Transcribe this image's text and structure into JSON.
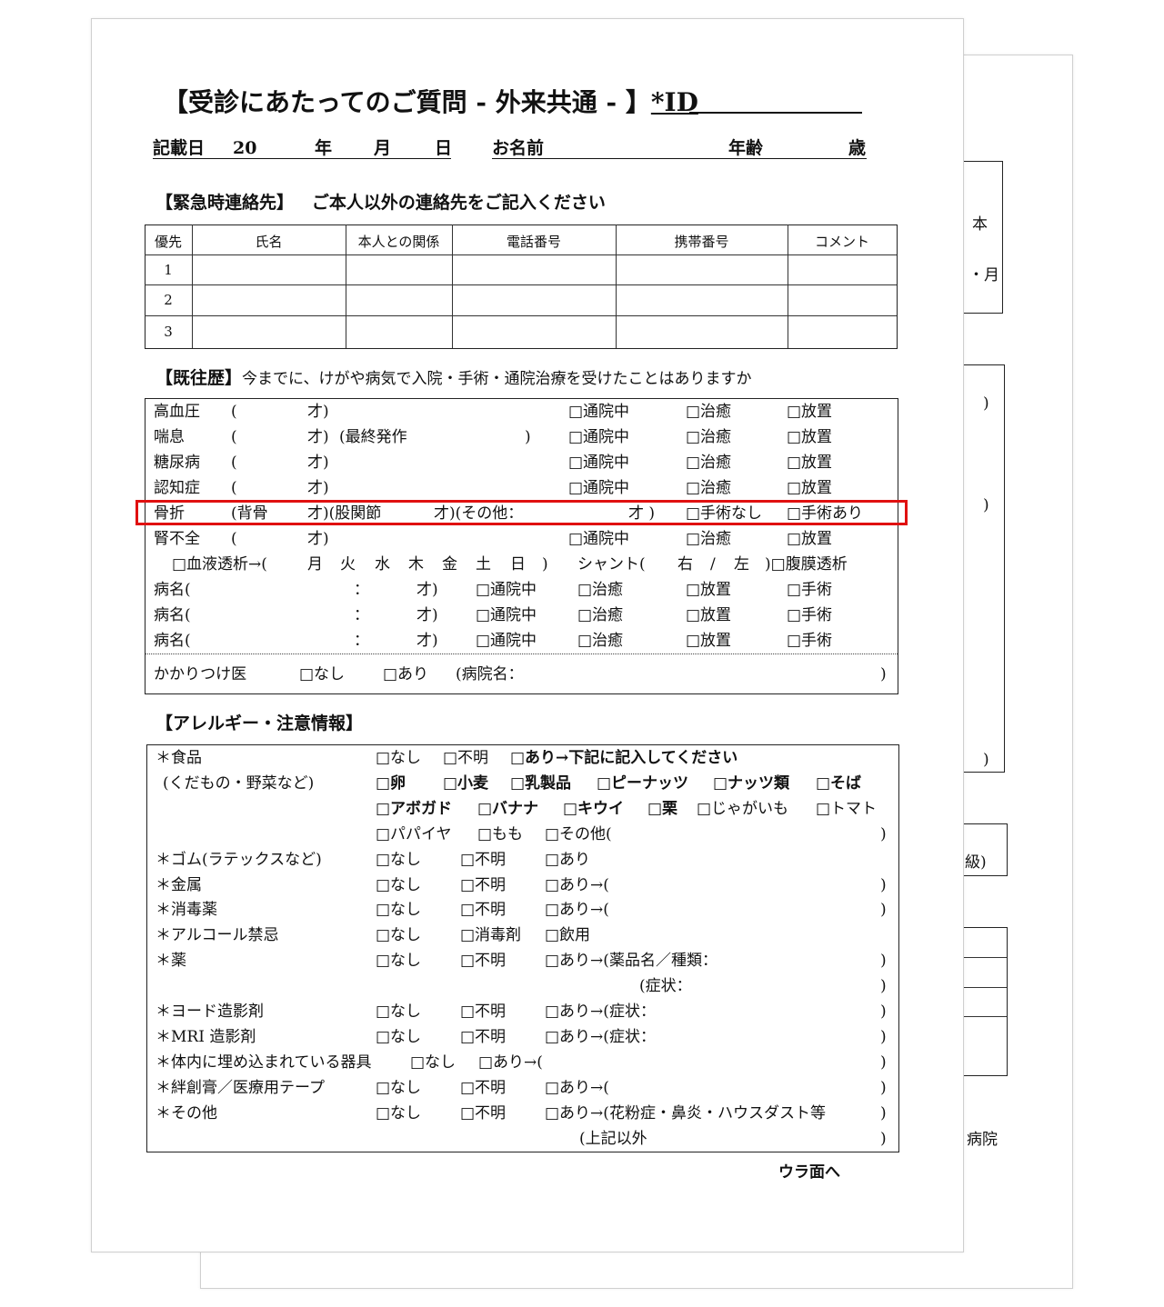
{
  "back_page": {
    "fragments": [
      "本",
      "・月",
      ")",
      ")",
      ")",
      "級)",
      "病院"
    ]
  },
  "header": {
    "title": "【受診にあたってのご質問 - 外来共通 - 】",
    "id_label": "*ID",
    "date_label": "記載日",
    "year_prefix": "20",
    "year": "年",
    "month": "月",
    "day": "日",
    "name_label": "お名前",
    "age_label": "年齢",
    "age_unit": "歳"
  },
  "emergency": {
    "heading": "【緊急時連絡先】",
    "subheading": "ご本人以外の連絡先をご記入ください",
    "columns": [
      "優先",
      "氏名",
      "本人との関係",
      "電話番号",
      "携帯番号",
      "コメント"
    ],
    "rows": [
      "1",
      "2",
      "3"
    ]
  },
  "history": {
    "heading": "【既往歴】",
    "subheading": "今までに、けがや病気で入院・手術・通院治療を受けたことはありますか",
    "rows": [
      [
        "高血圧",
        "(",
        "才)",
        "□通院中",
        "□治癒",
        "□放置"
      ],
      [
        "喘息",
        "(",
        "才)",
        "(最終発作",
        ")",
        "□通院中",
        "□治癒",
        "□放置"
      ],
      [
        "糖尿病",
        "(",
        "才)",
        "□通院中",
        "□治癒",
        "□放置"
      ],
      [
        "認知症",
        "(",
        "才)",
        "□通院中",
        "□治癒",
        "□放置"
      ],
      [
        "骨折",
        "(背骨",
        "才)(股関節",
        "才)(その他：",
        "才 )",
        "□手術なし",
        "□手術あり"
      ],
      [
        "腎不全",
        "(",
        "才)",
        "□通院中",
        "□治癒",
        "□放置"
      ],
      [
        "□血液透析→(",
        "月",
        "火",
        "水",
        "木",
        "金",
        "土",
        "日",
        ")",
        "シャント(",
        "右",
        "/",
        "左",
        ")□腹膜透析"
      ],
      [
        "病名(",
        "：",
        "才)",
        "□通院中",
        "□治癒",
        "□放置",
        "□手術"
      ],
      [
        "病名(",
        "：",
        "才)",
        "□通院中",
        "□治癒",
        "□放置",
        "□手術"
      ],
      [
        "病名(",
        "：",
        "才)",
        "□通院中",
        "□治癒",
        "□放置",
        "□手術"
      ]
    ],
    "family_doctor": [
      "かかりつけ医",
      "□なし",
      "□あり",
      "(病院名：",
      ")"
    ]
  },
  "allergy": {
    "heading": "【アレルギー・注意情報】",
    "rows": [
      [
        "＊食品",
        "□なし",
        "□不明",
        "□あり→下記に記入してください"
      ],
      [
        "(くだもの・野菜など)",
        "□卵",
        "□小麦",
        "□乳製品",
        "□ピーナッツ",
        "□ナッツ類",
        "□そば"
      ],
      [
        "□アボガド",
        "□バナナ",
        "□キウイ",
        "□栗",
        "□じゃがいも",
        "□トマト"
      ],
      [
        "□パパイヤ",
        "□もも",
        "□その他(",
        ")"
      ],
      [
        "＊ゴム(ラテックスなど)",
        "□なし",
        "□不明",
        "□あり"
      ],
      [
        "＊金属",
        "□なし",
        "□不明",
        "□あり→(",
        ")"
      ],
      [
        "＊消毒薬",
        "□なし",
        "□不明",
        "□あり→(",
        ")"
      ],
      [
        "＊アルコール禁忌",
        "□なし",
        "□消毒剤",
        "□飲用"
      ],
      [
        "＊薬",
        "□なし",
        "□不明",
        "□あり→(薬品名／種類：",
        ")"
      ],
      [
        "(症状：",
        ")"
      ],
      [
        "＊ヨード造影剤",
        "□なし",
        "□不明",
        "□あり→(症状：",
        ")"
      ],
      [
        "＊MRI 造影剤",
        "□なし",
        "□不明",
        "□あり→(症状：",
        ")"
      ],
      [
        "＊体内に埋め込まれている器具",
        "□なし",
        "□あり→(",
        ")"
      ],
      [
        "＊絆創膏／医療用テープ",
        "□なし",
        "□不明",
        "□あり→(",
        ")"
      ],
      [
        "＊その他",
        "□なし",
        "□不明",
        "□あり→(花粉症・鼻炎・ハウスダスト等",
        ")"
      ],
      [
        "(上記以外",
        ")"
      ]
    ]
  },
  "footer": {
    "next_page": "ウラ面へ"
  },
  "highlight_color": "#e01010"
}
